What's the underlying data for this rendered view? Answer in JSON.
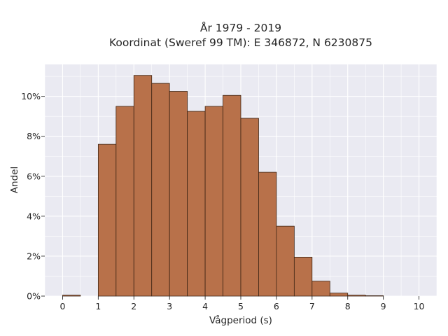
{
  "chart_data": {
    "type": "bar",
    "title_line1": "År 1979 - 2019",
    "title_line2": "Koordinat (Sweref 99 TM): E 346872, N 6230875",
    "xlabel": "Vågperiod (s)",
    "ylabel": "Andel",
    "xlim": [
      -0.5,
      10.5
    ],
    "ylim": [
      0,
      11.6
    ],
    "x_ticks": [
      0,
      1,
      2,
      3,
      4,
      5,
      6,
      7,
      8,
      9,
      10
    ],
    "y_ticks": [
      0,
      2,
      4,
      6,
      8,
      10
    ],
    "y_tick_labels": [
      "0%",
      "2%",
      "4%",
      "6%",
      "8%",
      "10%"
    ],
    "bin_width": 0.5,
    "bins": [
      {
        "start": 0.0,
        "value": 0.05
      },
      {
        "start": 0.5,
        "value": 0.0
      },
      {
        "start": 1.0,
        "value": 7.6
      },
      {
        "start": 1.5,
        "value": 9.5
      },
      {
        "start": 2.0,
        "value": 11.05
      },
      {
        "start": 2.5,
        "value": 10.65
      },
      {
        "start": 3.0,
        "value": 10.25
      },
      {
        "start": 3.5,
        "value": 9.25
      },
      {
        "start": 4.0,
        "value": 9.5
      },
      {
        "start": 4.5,
        "value": 10.05
      },
      {
        "start": 5.0,
        "value": 8.9
      },
      {
        "start": 5.5,
        "value": 6.2
      },
      {
        "start": 6.0,
        "value": 3.5
      },
      {
        "start": 6.5,
        "value": 1.95
      },
      {
        "start": 7.0,
        "value": 0.75
      },
      {
        "start": 7.5,
        "value": 0.15
      },
      {
        "start": 8.0,
        "value": 0.05
      },
      {
        "start": 8.5,
        "value": 0.02
      }
    ],
    "grid": true,
    "colors": {
      "bar_fill": "#b8714a",
      "bar_edge": "#3d2414",
      "plot_bg": "#eaeaf2",
      "grid": "#ffffff"
    }
  }
}
